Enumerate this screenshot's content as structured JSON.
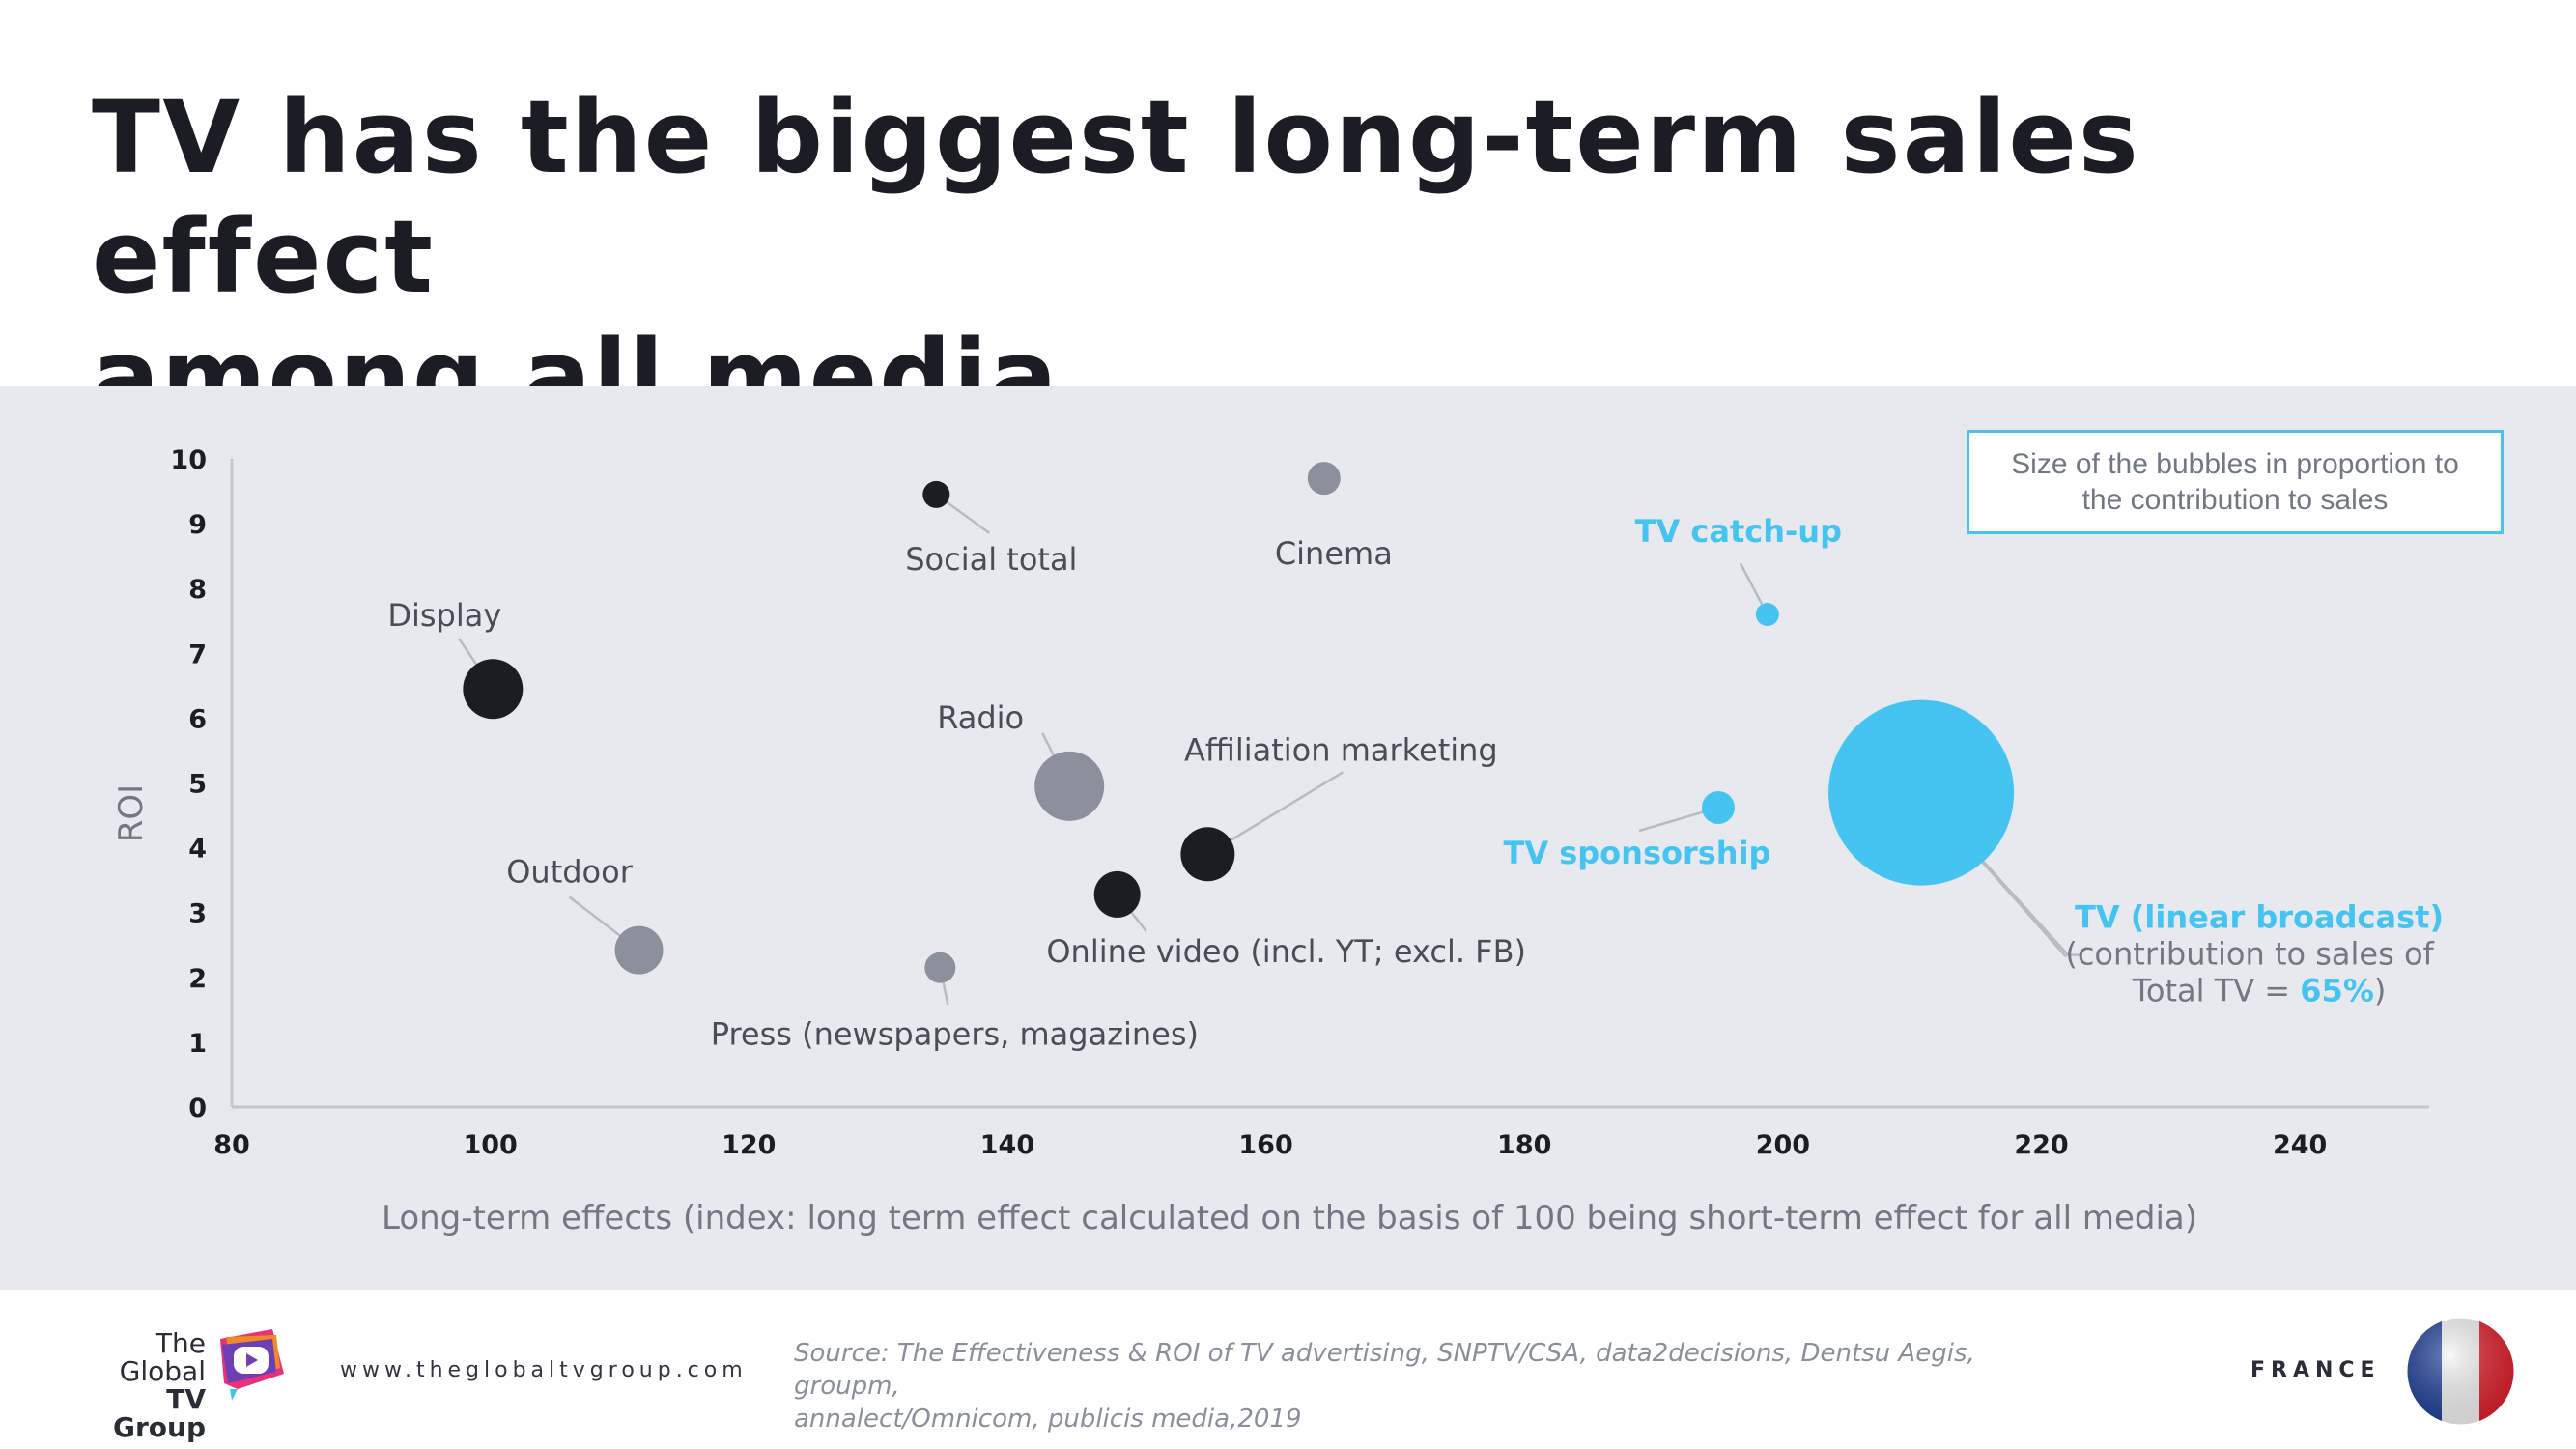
{
  "header": {
    "title_line1": "TV has the biggest long-term sales effect",
    "title_line2": "among all media"
  },
  "legend_note": {
    "line1": "Size of the bubbles in proportion to",
    "line2": "the contribution to sales"
  },
  "colors": {
    "dark": "#1c1d22",
    "grey": "#8c8f9c",
    "tv": "#45c4f2",
    "axis": "#c4c6cc",
    "label": "#4a4d57",
    "tick": "#1c1d24"
  },
  "chart_data": {
    "type": "scatter",
    "xlabel": "Long-term effects (index: long term effect calculated on the basis of 100 being short-term effect for all media)",
    "ylabel": "ROI",
    "xlim": [
      80,
      250
    ],
    "ylim": [
      0,
      10
    ],
    "xticks": [
      80,
      100,
      120,
      140,
      160,
      180,
      200,
      220,
      240
    ],
    "yticks": [
      0,
      1,
      2,
      3,
      4,
      5,
      6,
      7,
      8,
      9,
      10
    ],
    "grid": false,
    "points": [
      {
        "name": "Social total",
        "x": 134.5,
        "y": 9.45,
        "size": 14,
        "color": "dark",
        "label_lines": [
          "Social total"
        ],
        "label_pos": "below-right"
      },
      {
        "name": "Cinema",
        "x": 164.5,
        "y": 9.7,
        "size": 17,
        "color": "grey",
        "label_lines": [
          "Cinema"
        ],
        "label_pos": "below"
      },
      {
        "name": "TV catch-up",
        "x": 198.8,
        "y": 7.6,
        "size": 12,
        "color": "tv",
        "label_lines": [
          "TV catch-up"
        ],
        "label_pos": "above-left",
        "highlight": true
      },
      {
        "name": "Display",
        "x": 100.2,
        "y": 6.45,
        "size": 31,
        "color": "dark",
        "label_lines": [
          "Display"
        ],
        "label_pos": "above-left"
      },
      {
        "name": "Radio",
        "x": 144.8,
        "y": 4.95,
        "size": 36,
        "color": "grey",
        "label_lines": [
          "Radio"
        ],
        "label_pos": "above-left"
      },
      {
        "name": "Affiliation marketing",
        "x": 155.5,
        "y": 3.9,
        "size": 28,
        "color": "dark",
        "label_lines": [
          "Affiliation marketing"
        ],
        "label_pos": "above-right"
      },
      {
        "name": "TV sponsorship",
        "x": 195,
        "y": 4.62,
        "size": 17,
        "color": "tv",
        "label_lines": [
          "TV sponsorship"
        ],
        "label_pos": "below-left",
        "highlight": true
      },
      {
        "name": "TV (linear broadcast)",
        "x": 210.7,
        "y": 4.85,
        "size": 96,
        "color": "tv",
        "label_lines": [
          "TV (linear broadcast)",
          "(contribution to sales of",
          "Total TV = 65%)"
        ],
        "label_pos": "right",
        "highlight": true
      },
      {
        "name": "Outdoor",
        "x": 111.5,
        "y": 2.42,
        "size": 25,
        "color": "grey",
        "label_lines": [
          "Outdoor"
        ],
        "label_pos": "above-left"
      },
      {
        "name": "Online video (incl. YT; excl. FB)",
        "x": 148.5,
        "y": 3.28,
        "size": 24,
        "color": "dark",
        "label_lines": [
          "Online video (incl. YT; excl. FB)"
        ],
        "label_pos": "below-right"
      },
      {
        "name": "Press (newspapers, magazines)",
        "x": 134.8,
        "y": 2.15,
        "size": 16,
        "color": "grey",
        "label_lines": [
          "Press (newspapers, magazines)"
        ],
        "label_pos": "below"
      }
    ]
  },
  "footer": {
    "logo_line1": "The",
    "logo_line2": "Global",
    "logo_line3": "TV Group",
    "url": "www.theglobaltvgroup.com",
    "source_line1": "Source:  The Effectiveness & ROI of TV advertising, SNPTV/CSA, data2decisions, Dentsu Aegis, groupm,",
    "source_line2": "annalect/Omnicom, publicis media,2019",
    "country": "FRANCE",
    "logo_icon": "play-speech-bubble-icon",
    "flag_icon": "france-flag-icon"
  }
}
